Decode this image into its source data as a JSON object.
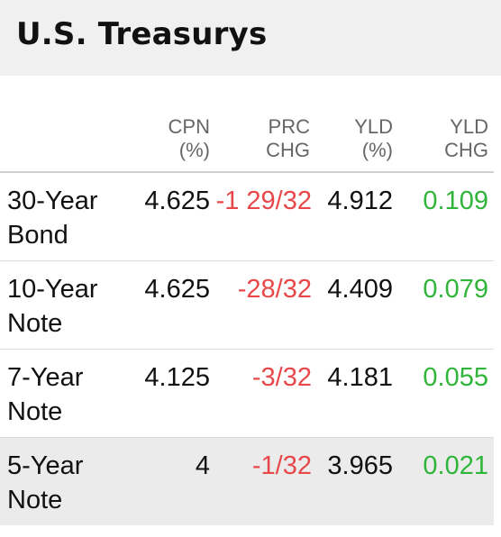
{
  "title": "U.S. Treasurys",
  "columns": {
    "cpn": [
      "CPN",
      "(%)"
    ],
    "prc_chg": [
      "PRC",
      "CHG"
    ],
    "yld": [
      "YLD",
      "(%)"
    ],
    "yld_chg": [
      "YLD",
      "CHG"
    ]
  },
  "rows": [
    {
      "name": "30-Year Bond",
      "cpn": "4.625",
      "prc_chg": "-1 29/32",
      "yld": "4.912",
      "yld_chg": "0.109"
    },
    {
      "name": "10-Year Note",
      "cpn": "4.625",
      "prc_chg": "-28/32",
      "yld": "4.409",
      "yld_chg": "0.079"
    },
    {
      "name": "7-Year Note",
      "cpn": "4.125",
      "prc_chg": "-3/32",
      "yld": "4.181",
      "yld_chg": "0.055"
    },
    {
      "name": "5-Year Note",
      "cpn": "4",
      "prc_chg": "-1/32",
      "yld": "3.965",
      "yld_chg": "0.021"
    }
  ],
  "colors": {
    "negative": "#e8484a",
    "positive": "#2fb53a",
    "header_bg": "#f0f0f0",
    "highlight_row_bg": "#ebebeb"
  }
}
